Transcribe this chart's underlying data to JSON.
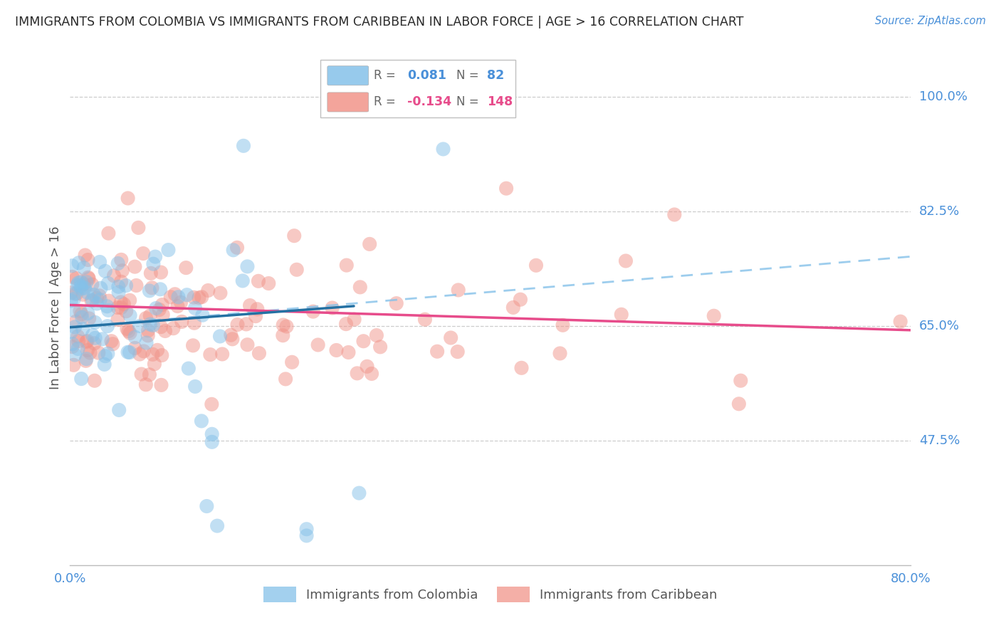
{
  "title": "IMMIGRANTS FROM COLOMBIA VS IMMIGRANTS FROM CARIBBEAN IN LABOR FORCE | AGE > 16 CORRELATION CHART",
  "source": "Source: ZipAtlas.com",
  "ylabel": "In Labor Force | Age > 16",
  "xlim": [
    0.0,
    0.8
  ],
  "ylim": [
    0.285,
    1.07
  ],
  "yticks": [
    0.475,
    0.65,
    0.825,
    1.0
  ],
  "ytick_labels": [
    "47.5%",
    "65.0%",
    "82.5%",
    "100.0%"
  ],
  "xticks": [
    0.0,
    0.1,
    0.2,
    0.3,
    0.4,
    0.5,
    0.6,
    0.7,
    0.8
  ],
  "colombia_R": 0.081,
  "colombia_N": 82,
  "caribbean_R": -0.134,
  "caribbean_N": 148,
  "colombia_color": "#85C1E9",
  "caribbean_color": "#F1948A",
  "colombia_trend_color": "#2471A3",
  "caribbean_trend_color": "#E74C8B",
  "dashed_color": "#85C1E9",
  "grid_color": "#C8C8C8",
  "title_color": "#2A2A2A",
  "label_color": "#4A90D9",
  "background_color": "#FFFFFF",
  "watermark_color": "#DDDDDD",
  "seed": 99
}
